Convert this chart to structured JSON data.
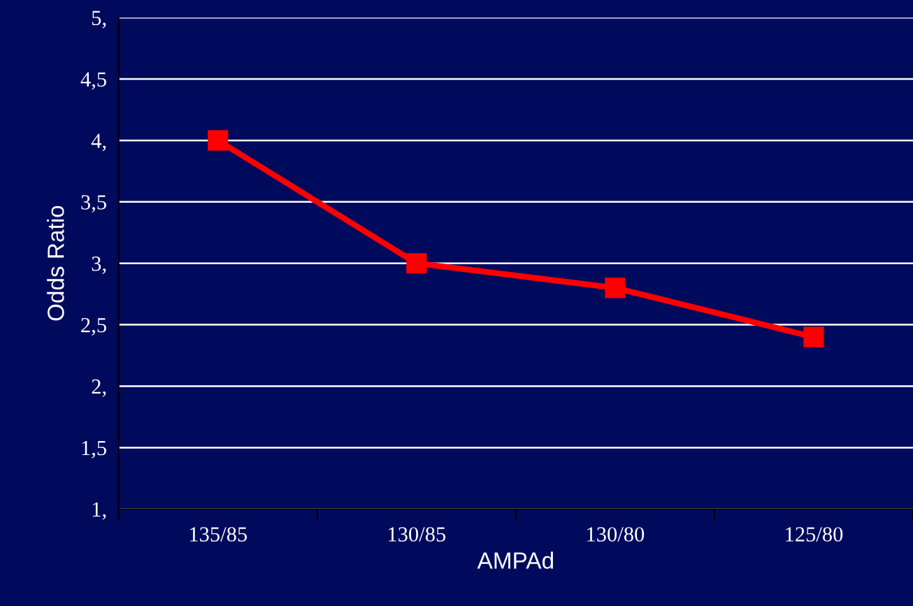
{
  "chart_data": {
    "type": "line",
    "xlabel": "AMPAd",
    "ylabel": "Odds Ratio",
    "categories": [
      "135/85",
      "130/85",
      "130/80",
      "125/80"
    ],
    "series": [
      {
        "color": "#ff0000",
        "values": [
          4,
          3,
          2.8,
          2.4
        ]
      }
    ],
    "ylim": [
      1,
      5
    ],
    "yticks": [
      {
        "value": 1,
        "label": "1,"
      },
      {
        "value": 1.5,
        "label": "1,5"
      },
      {
        "value": 2,
        "label": "2,"
      },
      {
        "value": 2.5,
        "label": "2,5"
      },
      {
        "value": 3,
        "label": "3,"
      },
      {
        "value": 3.5,
        "label": "3,5"
      },
      {
        "value": 4,
        "label": "4,"
      },
      {
        "value": 4.5,
        "label": "4,5"
      },
      {
        "value": 5,
        "label": "5,"
      }
    ],
    "grid": "y",
    "marker": "square",
    "line_style": "solid"
  }
}
